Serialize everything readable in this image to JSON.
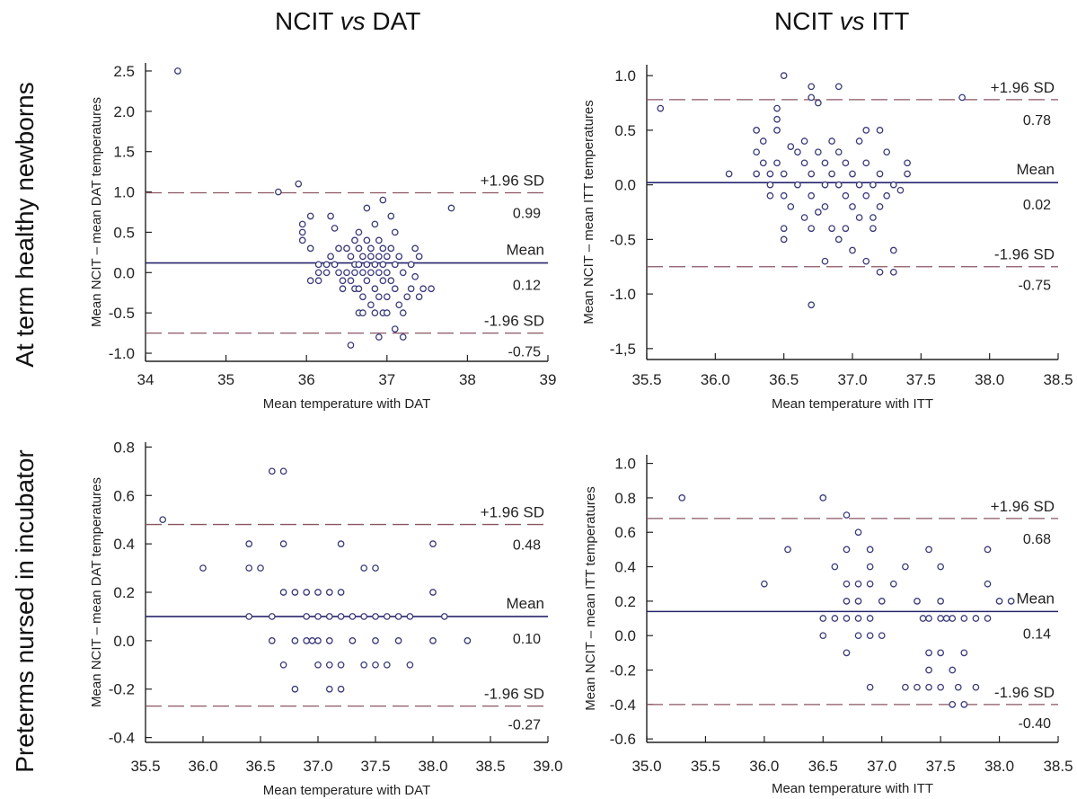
{
  "figure": {
    "col_titles": [
      {
        "pre": "NCIT ",
        "vs": "vs",
        "post": " DAT"
      },
      {
        "pre": "NCIT ",
        "vs": "vs",
        "post": " ITT"
      }
    ],
    "row_titles": [
      "At term healthy newborns",
      "Preterms nursed in incubator"
    ]
  },
  "colors": {
    "mean_line": "#26266e",
    "sd_line": "#8a5560",
    "marker": "#3a3a7a",
    "axis": "#222222"
  },
  "chart_data": [
    {
      "type": "scatter",
      "xlabel": "Mean temperature with DAT",
      "ylabel": "Mean NCIT – mean DAT temperatures",
      "xlim": [
        34,
        39
      ],
      "ylim": [
        -1.1,
        2.6
      ],
      "xticks": [
        34,
        35,
        36,
        37,
        38,
        39
      ],
      "xtick_labels": [
        "34",
        "35",
        "36",
        "37",
        "38",
        "39"
      ],
      "yticks": [
        2.5,
        2.0,
        1.5,
        1.0,
        0.5,
        0.0,
        -0.5,
        -1.0
      ],
      "ytick_labels": [
        "2.5",
        "2.0",
        "1.5",
        "1.0",
        "0.5",
        "0.0",
        "-0.5",
        "-1.0"
      ],
      "upper": 0.99,
      "mean": 0.12,
      "lower": -0.75,
      "upper_label": "+1.96 SD",
      "mean_label": "Mean",
      "lower_label": "-1.96 SD",
      "upper_value": "0.99",
      "mean_value": "0.12",
      "lower_value": "-0.75",
      "points": [
        [
          34.4,
          2.5
        ],
        [
          35.65,
          1.0
        ],
        [
          35.9,
          1.1
        ],
        [
          37.8,
          0.8
        ],
        [
          35.95,
          0.6
        ],
        [
          35.95,
          0.5
        ],
        [
          35.95,
          0.4
        ],
        [
          36.05,
          0.7
        ],
        [
          36.05,
          0.3
        ],
        [
          36.05,
          -0.1
        ],
        [
          36.15,
          0.1
        ],
        [
          36.15,
          0.0
        ],
        [
          36.15,
          -0.1
        ],
        [
          36.25,
          0.1
        ],
        [
          36.25,
          0.0
        ],
        [
          36.3,
          0.7
        ],
        [
          36.3,
          0.2
        ],
        [
          36.35,
          0.55
        ],
        [
          36.35,
          0.1
        ],
        [
          36.4,
          0.3
        ],
        [
          36.4,
          0.0
        ],
        [
          36.45,
          -0.1
        ],
        [
          36.45,
          -0.2
        ],
        [
          36.5,
          0.3
        ],
        [
          36.5,
          0.0
        ],
        [
          36.55,
          0.2
        ],
        [
          36.55,
          -0.1
        ],
        [
          36.6,
          0.4
        ],
        [
          36.6,
          0.1
        ],
        [
          36.6,
          -0.2
        ],
        [
          36.65,
          0.5
        ],
        [
          36.65,
          0.3
        ],
        [
          36.65,
          0.1
        ],
        [
          36.65,
          -0.2
        ],
        [
          36.65,
          -0.5
        ],
        [
          36.7,
          0.2
        ],
        [
          36.7,
          0.0
        ],
        [
          36.7,
          -0.3
        ],
        [
          36.75,
          0.8
        ],
        [
          36.75,
          0.4
        ],
        [
          36.75,
          0.1
        ],
        [
          36.75,
          -0.1
        ],
        [
          36.8,
          0.3
        ],
        [
          36.8,
          0.2
        ],
        [
          36.8,
          -0.4
        ],
        [
          36.85,
          0.6
        ],
        [
          36.85,
          0.1
        ],
        [
          36.85,
          -0.2
        ],
        [
          36.85,
          -0.5
        ],
        [
          36.9,
          0.4
        ],
        [
          36.9,
          0.2
        ],
        [
          36.9,
          0.0
        ],
        [
          36.9,
          -0.3
        ],
        [
          36.95,
          0.9
        ],
        [
          36.95,
          0.3
        ],
        [
          36.95,
          0.1
        ],
        [
          36.95,
          -0.1
        ],
        [
          36.95,
          -0.5
        ],
        [
          37.0,
          0.2
        ],
        [
          37.0,
          0.0
        ],
        [
          37.0,
          -0.3
        ],
        [
          37.05,
          0.7
        ],
        [
          37.05,
          0.3
        ],
        [
          37.05,
          -0.1
        ],
        [
          37.1,
          0.5
        ],
        [
          37.1,
          0.1
        ],
        [
          37.1,
          -0.2
        ],
        [
          37.15,
          0.2
        ],
        [
          37.15,
          -0.4
        ],
        [
          37.2,
          0.0
        ],
        [
          37.2,
          -0.5
        ],
        [
          37.25,
          -0.3
        ],
        [
          37.3,
          0.1
        ],
        [
          37.3,
          -0.2
        ],
        [
          37.35,
          0.3
        ],
        [
          37.35,
          -0.05
        ],
        [
          37.4,
          0.2
        ],
        [
          37.4,
          -0.3
        ],
        [
          37.45,
          -0.2
        ],
        [
          37.55,
          -0.2
        ],
        [
          37.1,
          -0.7
        ],
        [
          36.9,
          -0.8
        ],
        [
          37.2,
          -0.8
        ],
        [
          36.55,
          -0.9
        ],
        [
          36.7,
          -0.5
        ],
        [
          37.0,
          -0.5
        ],
        [
          36.8,
          0.0
        ],
        [
          36.6,
          0.0
        ]
      ]
    },
    {
      "type": "scatter",
      "xlabel": "Mean temperature with ITT",
      "ylabel": "Mean NCIT – mean ITT temperatures",
      "xlim": [
        35.5,
        38.5
      ],
      "ylim": [
        -1.6,
        1.1
      ],
      "xticks": [
        35.5,
        36.0,
        36.5,
        37.0,
        37.5,
        38.0,
        38.5
      ],
      "xtick_labels": [
        "35.5",
        "36.0",
        "36.5",
        "37.0",
        "37.5",
        "38.0",
        "38.5"
      ],
      "yticks": [
        1.0,
        0.5,
        0.0,
        -0.5,
        -1.0,
        -1.5
      ],
      "ytick_labels": [
        "1.0",
        "0.5",
        "0.0",
        "-0.5",
        "-1.0",
        "-1,5"
      ],
      "upper": 0.78,
      "mean": 0.02,
      "lower": -0.75,
      "upper_label": "+1.96 SD",
      "mean_label": "Mean",
      "lower_label": "-1.96 SD",
      "upper_value": "0.78",
      "mean_value": "0.02",
      "lower_value": "-0.75",
      "points": [
        [
          35.6,
          0.7
        ],
        [
          36.1,
          0.1
        ],
        [
          36.3,
          0.5
        ],
        [
          36.3,
          0.3
        ],
        [
          36.3,
          0.1
        ],
        [
          36.35,
          0.4
        ],
        [
          36.35,
          0.2
        ],
        [
          36.4,
          0.1
        ],
        [
          36.4,
          0.0
        ],
        [
          36.4,
          -0.1
        ],
        [
          36.45,
          0.7
        ],
        [
          36.45,
          0.6
        ],
        [
          36.45,
          0.5
        ],
        [
          36.45,
          0.2
        ],
        [
          36.5,
          1.0
        ],
        [
          36.5,
          0.1
        ],
        [
          36.5,
          -0.1
        ],
        [
          36.5,
          -0.4
        ],
        [
          36.5,
          -0.5
        ],
        [
          36.55,
          0.35
        ],
        [
          36.55,
          -0.2
        ],
        [
          36.6,
          0.3
        ],
        [
          36.6,
          0.0
        ],
        [
          36.65,
          0.4
        ],
        [
          36.65,
          0.2
        ],
        [
          36.65,
          -0.3
        ],
        [
          36.7,
          0.9
        ],
        [
          36.7,
          0.8
        ],
        [
          36.7,
          0.1
        ],
        [
          36.7,
          -0.1
        ],
        [
          36.7,
          -0.4
        ],
        [
          36.75,
          0.75
        ],
        [
          36.75,
          0.3
        ],
        [
          36.75,
          -0.25
        ],
        [
          36.8,
          0.2
        ],
        [
          36.8,
          0.0
        ],
        [
          36.8,
          -0.2
        ],
        [
          36.8,
          -0.7
        ],
        [
          36.85,
          0.4
        ],
        [
          36.85,
          0.1
        ],
        [
          36.85,
          -0.4
        ],
        [
          36.9,
          0.9
        ],
        [
          36.9,
          0.3
        ],
        [
          36.9,
          0.0
        ],
        [
          36.9,
          -0.5
        ],
        [
          36.95,
          0.2
        ],
        [
          36.95,
          -0.1
        ],
        [
          37.0,
          0.1
        ],
        [
          37.0,
          -0.2
        ],
        [
          37.0,
          -0.6
        ],
        [
          37.05,
          0.4
        ],
        [
          37.05,
          0.0
        ],
        [
          37.05,
          -0.3
        ],
        [
          37.1,
          0.5
        ],
        [
          37.1,
          0.2
        ],
        [
          37.1,
          -0.1
        ],
        [
          37.1,
          -0.7
        ],
        [
          37.15,
          0.0
        ],
        [
          37.15,
          -0.4
        ],
        [
          37.2,
          0.5
        ],
        [
          37.2,
          0.1
        ],
        [
          37.2,
          -0.2
        ],
        [
          37.2,
          -0.8
        ],
        [
          37.25,
          0.3
        ],
        [
          37.3,
          0.0
        ],
        [
          37.3,
          -0.6
        ],
        [
          37.3,
          -0.8
        ],
        [
          37.35,
          -0.05
        ],
        [
          37.4,
          0.2
        ],
        [
          37.4,
          0.1
        ],
        [
          37.8,
          0.8
        ],
        [
          36.7,
          -1.1
        ],
        [
          37.15,
          -0.3
        ],
        [
          36.95,
          -0.4
        ],
        [
          37.25,
          -0.1
        ]
      ]
    },
    {
      "type": "scatter",
      "xlabel": "Mean temperature with DAT",
      "ylabel": "Mean NCIT – mean DAT temperatures",
      "xlim": [
        35.5,
        39.0
      ],
      "ylim": [
        -0.42,
        0.82
      ],
      "xticks": [
        35.5,
        36.0,
        36.5,
        37.0,
        37.5,
        38.0,
        38.5,
        39.0
      ],
      "xtick_labels": [
        "35.5",
        "36.0",
        "36.5",
        "37.0",
        "37.5",
        "38.0",
        "38.5",
        "39.0"
      ],
      "yticks": [
        0.8,
        0.6,
        0.4,
        0.2,
        0.0,
        -0.2,
        -0.4
      ],
      "ytick_labels": [
        "0.8",
        "0.6",
        "0.4",
        "0.2",
        "0.0",
        "-0.2",
        "-0.4"
      ],
      "upper": 0.48,
      "mean": 0.1,
      "lower": -0.27,
      "upper_label": "+1.96 SD",
      "mean_label": "Mean",
      "lower_label": "-1.96 SD",
      "upper_value": "0.48",
      "mean_value": "0.10",
      "lower_value": "-0.27",
      "points": [
        [
          35.65,
          0.5
        ],
        [
          36.0,
          0.3
        ],
        [
          36.4,
          0.4
        ],
        [
          36.4,
          0.3
        ],
        [
          36.4,
          0.1
        ],
        [
          36.5,
          0.3
        ],
        [
          36.6,
          0.7
        ],
        [
          36.6,
          0.1
        ],
        [
          36.6,
          0.0
        ],
        [
          36.7,
          0.7
        ],
        [
          36.7,
          0.4
        ],
        [
          36.7,
          0.2
        ],
        [
          36.7,
          -0.1
        ],
        [
          36.8,
          0.2
        ],
        [
          36.8,
          0.0
        ],
        [
          36.8,
          -0.2
        ],
        [
          36.9,
          0.2
        ],
        [
          36.9,
          0.1
        ],
        [
          36.9,
          0.0
        ],
        [
          37.0,
          0.2
        ],
        [
          37.0,
          0.1
        ],
        [
          37.0,
          -0.1
        ],
        [
          37.1,
          0.2
        ],
        [
          37.1,
          0.1
        ],
        [
          37.1,
          0.0
        ],
        [
          37.1,
          -0.1
        ],
        [
          37.1,
          -0.2
        ],
        [
          37.2,
          0.4
        ],
        [
          37.2,
          0.2
        ],
        [
          37.2,
          0.1
        ],
        [
          37.2,
          -0.1
        ],
        [
          37.2,
          -0.2
        ],
        [
          37.3,
          0.1
        ],
        [
          37.3,
          0.0
        ],
        [
          37.4,
          0.3
        ],
        [
          37.4,
          0.1
        ],
        [
          37.4,
          -0.1
        ],
        [
          37.5,
          0.3
        ],
        [
          37.5,
          0.1
        ],
        [
          37.5,
          0.0
        ],
        [
          37.5,
          -0.1
        ],
        [
          37.6,
          0.1
        ],
        [
          37.6,
          -0.1
        ],
        [
          37.7,
          0.1
        ],
        [
          37.7,
          0.0
        ],
        [
          37.8,
          0.1
        ],
        [
          37.8,
          -0.1
        ],
        [
          38.0,
          0.4
        ],
        [
          38.0,
          0.2
        ],
        [
          38.0,
          0.0
        ],
        [
          38.1,
          0.1
        ],
        [
          38.3,
          0.0
        ],
        [
          37.0,
          0.0
        ],
        [
          36.95,
          0.0
        ]
      ]
    },
    {
      "type": "scatter",
      "xlabel": "Mean temperature with ITT",
      "ylabel": "Mean NCIT – mean ITT temperatures",
      "xlim": [
        35.0,
        38.5
      ],
      "ylim": [
        -0.62,
        1.05
      ],
      "xticks": [
        35.0,
        35.5,
        36.0,
        36.5,
        37.0,
        37.5,
        38.0,
        38.5
      ],
      "xtick_labels": [
        "35.0",
        "35.5",
        "36.0",
        "36.5",
        "37.0",
        "37.5",
        "38.0",
        "38.5"
      ],
      "yticks": [
        1.0,
        0.8,
        0.6,
        0.4,
        0.2,
        0.0,
        -0.2,
        -0.4,
        -0.6
      ],
      "ytick_labels": [
        "1.0",
        "0.8",
        "0.6",
        "0.4",
        "0.2",
        "0.0",
        "-0.2",
        "-0.4",
        "-0.6"
      ],
      "upper": 0.68,
      "mean": 0.14,
      "lower": -0.4,
      "upper_label": "+1.96 SD",
      "mean_label": "Mean",
      "lower_label": "-1.96 SD",
      "upper_value": "0.68",
      "mean_value": "0.14",
      "lower_value": "-0.40",
      "points": [
        [
          35.3,
          0.8
        ],
        [
          36.0,
          0.3
        ],
        [
          36.2,
          0.5
        ],
        [
          36.5,
          0.8
        ],
        [
          36.5,
          0.1
        ],
        [
          36.5,
          0.0
        ],
        [
          36.6,
          0.4
        ],
        [
          36.6,
          0.1
        ],
        [
          36.7,
          0.7
        ],
        [
          36.7,
          0.5
        ],
        [
          36.7,
          0.3
        ],
        [
          36.7,
          0.2
        ],
        [
          36.7,
          0.1
        ],
        [
          36.7,
          -0.1
        ],
        [
          36.8,
          0.6
        ],
        [
          36.8,
          0.3
        ],
        [
          36.8,
          0.2
        ],
        [
          36.8,
          0.1
        ],
        [
          36.8,
          0.0
        ],
        [
          36.9,
          0.5
        ],
        [
          36.9,
          0.4
        ],
        [
          36.9,
          0.3
        ],
        [
          36.9,
          0.1
        ],
        [
          36.9,
          0.0
        ],
        [
          36.9,
          -0.3
        ],
        [
          37.0,
          0.2
        ],
        [
          37.0,
          0.0
        ],
        [
          37.1,
          0.3
        ],
        [
          37.2,
          0.4
        ],
        [
          37.2,
          -0.3
        ],
        [
          37.3,
          0.2
        ],
        [
          37.3,
          -0.3
        ],
        [
          37.4,
          0.5
        ],
        [
          37.4,
          0.1
        ],
        [
          37.4,
          -0.1
        ],
        [
          37.4,
          -0.2
        ],
        [
          37.4,
          -0.3
        ],
        [
          37.5,
          0.4
        ],
        [
          37.5,
          0.2
        ],
        [
          37.5,
          0.1
        ],
        [
          37.5,
          -0.1
        ],
        [
          37.5,
          -0.3
        ],
        [
          37.6,
          0.1
        ],
        [
          37.6,
          -0.2
        ],
        [
          37.6,
          -0.4
        ],
        [
          37.65,
          -0.3
        ],
        [
          37.7,
          0.1
        ],
        [
          37.7,
          -0.1
        ],
        [
          37.7,
          -0.4
        ],
        [
          37.8,
          0.1
        ],
        [
          37.8,
          -0.3
        ],
        [
          37.9,
          0.5
        ],
        [
          37.9,
          0.3
        ],
        [
          37.9,
          0.1
        ],
        [
          38.0,
          0.2
        ],
        [
          38.1,
          0.2
        ],
        [
          37.35,
          0.1
        ],
        [
          37.55,
          0.1
        ]
      ]
    }
  ]
}
